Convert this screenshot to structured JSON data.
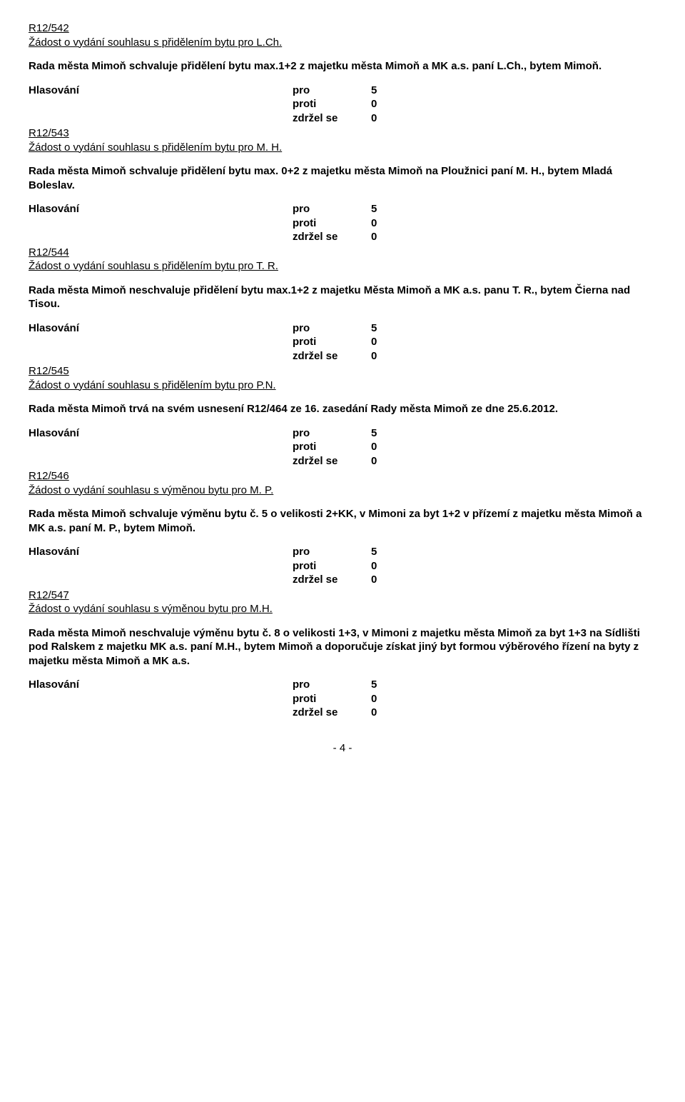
{
  "sections": [
    {
      "ref": "R12/542",
      "request": "Žádost o vydání souhlasu s přidělením bytu pro L.Ch.",
      "body": "Rada města Mimoň schvaluje  přidělení  bytu max.1+2  z majetku města Mimoň  a MK a.s.  paní  L.Ch., bytem Mimoň."
    },
    {
      "ref": "R12/543",
      "request": "Žádost o vydání souhlasu s přidělením bytu pro M. H.",
      "body": "Rada města Mimoň schvaluje přidělení bytu max. 0+2  z majetku města Mimoň na Ploužnici  paní  M. H., bytem Mladá Boleslav."
    },
    {
      "ref": "R12/544",
      "request": "Žádost o vydání souhlasu s přidělením bytu pro T. R.",
      "body": "Rada města Mimoň neschvaluje  přidělení  bytu max.1+2 z majetku Města Mimoň  a MK a.s.  panu  T. R., bytem Čierna nad Tisou."
    },
    {
      "ref": "R12/545",
      "request": "Žádost o vydání souhlasu s přidělením bytu pro P.N.",
      "body": "Rada města Mimoň trvá na svém usnesení R12/464 ze 16. zasedání Rady města Mimoň ze dne 25.6.2012."
    },
    {
      "ref": "R12/546",
      "request": "Žádost o vydání souhlasu s výměnou bytu pro M. P.",
      "body": "Rada města Mimoň schvaluje výměnu bytu č. 5 o velikosti 2+KK, v Mimoni  za byt 1+2 v přízemí z majetku města Mimoň a MK a.s.  paní  M. P., bytem Mimoň."
    },
    {
      "ref": "R12/547",
      "request": "Žádost o vydání souhlasu s výměnou bytu pro M.H.",
      "body": "Rada města Mimoň neschvaluje  výměnu bytu č. 8 o velikosti 1+3, v Mimoni z majetku města Mimoň za byt 1+3 na Sídlišti pod Ralskem z majetku MK a.s.  paní  M.H., bytem Mimoň a doporučuje získat jiný byt formou výběrového řízení na byty z majetku města Mimoň a MK a.s."
    }
  ],
  "vote": {
    "label": "Hlasování",
    "rows": [
      {
        "field": "pro",
        "value": "5"
      },
      {
        "field": "proti",
        "value": "0"
      },
      {
        "field": "zdržel se",
        "value": "0"
      }
    ]
  },
  "footer": "- 4 -"
}
